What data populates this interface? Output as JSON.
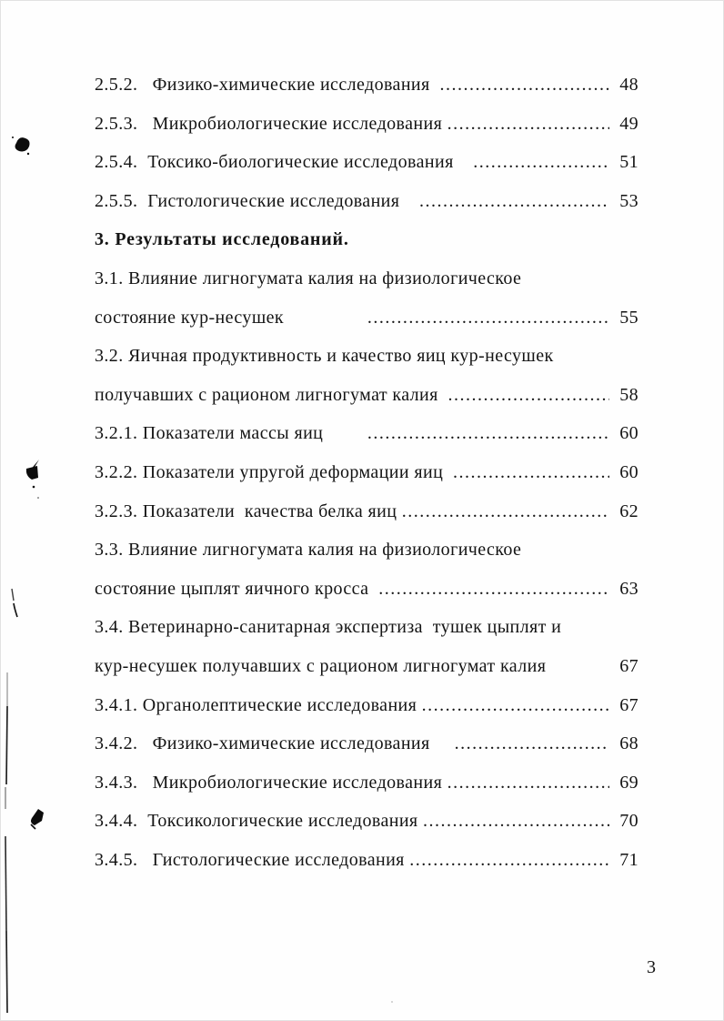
{
  "page": {
    "number": "3"
  },
  "toc": {
    "entries": [
      {
        "text": "2.5.2.   Физико-химические исследования  ",
        "page": "48",
        "leader": true,
        "bold": false
      },
      {
        "text": "2.5.3.   Микробиологические исследования ",
        "page": "49",
        "leader": true,
        "bold": false
      },
      {
        "text": "2.5.4.  Токсико-биологические исследования    ",
        "page": "51",
        "leader": true,
        "bold": false
      },
      {
        "text": "2.5.5.  Гистологические исследования    ",
        "page": "53",
        "leader": true,
        "bold": false
      },
      {
        "text": "3. Результаты исследований.",
        "page": "",
        "leader": false,
        "bold": true
      },
      {
        "text": "3.1. Влияние лигногумата калия на физиологическое",
        "page": "",
        "leader": false,
        "bold": false
      },
      {
        "text": "состояние кур-несушек                 ",
        "page": "55",
        "leader": true,
        "bold": false
      },
      {
        "text": "3.2. Яичная продуктивность и качество яиц кур-несушек",
        "page": "",
        "leader": false,
        "bold": false
      },
      {
        "text": "получавших с рационом лигногумат калия  ",
        "page": "58",
        "leader": true,
        "bold": false
      },
      {
        "text": "3.2.1. Показатели массы яиц         ",
        "page": "60",
        "leader": true,
        "bold": false
      },
      {
        "text": "3.2.2. Показатели упругой деформации яиц  ",
        "page": "60",
        "leader": true,
        "bold": false
      },
      {
        "text": "3.2.3. Показатели  качества белка яиц ",
        "page": "62",
        "leader": true,
        "bold": false
      },
      {
        "text": "3.3. Влияние лигногумата калия на физиологическое",
        "page": "",
        "leader": false,
        "bold": false
      },
      {
        "text": "состояние цыплят яичного кросса  ",
        "page": "63",
        "leader": true,
        "bold": false
      },
      {
        "text": "3.4. Ветеринарно-санитарная экспертиза  тушек цыплят и",
        "page": "",
        "leader": false,
        "bold": false
      },
      {
        "text": "кур-несушек получавших с рационом лигногумат калия",
        "page": "67",
        "leader": false,
        "bold": false
      },
      {
        "text": "3.4.1. Органолептические исследования ",
        "page": "67",
        "leader": true,
        "bold": false
      },
      {
        "text": "3.4.2.   Физико-химические исследования     ",
        "page": "68",
        "leader": true,
        "bold": false
      },
      {
        "text": "3.4.3.   Микробиологические исследования ",
        "page": "69",
        "leader": true,
        "bold": false
      },
      {
        "text": "3.4.4.  Токсикологические исследования ",
        "page": "70",
        "leader": true,
        "bold": false
      },
      {
        "text": "3.4.5.   Гистологические исследования ",
        "page": "71",
        "leader": true,
        "bold": false
      }
    ]
  }
}
